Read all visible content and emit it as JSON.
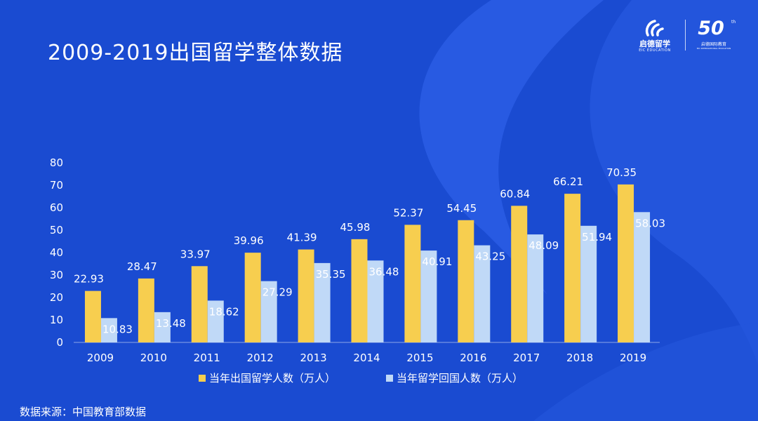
{
  "title": "2009-2019出国留学整体数据",
  "logo": {
    "brand_cn": "启德留学",
    "brand_en": "EIC EDUCATION",
    "anniversary_number": "50",
    "anniversary_suffix": "th",
    "anniversary_cn": "启德国际教育",
    "anniversary_en": "EIC INTERNATIONAL EDUCATION"
  },
  "source_text": "数据来源：中国教育部数据",
  "colors": {
    "background": "#1a4bd1",
    "series_outbound": "#f7ce4f",
    "series_returned": "#c0d9f7",
    "text": "#ffffff",
    "axis": "#8fa5e6"
  },
  "chart_data": {
    "type": "bar",
    "categories": [
      "2009",
      "2010",
      "2011",
      "2012",
      "2013",
      "2014",
      "2015",
      "2016",
      "2017",
      "2018",
      "2019"
    ],
    "series": [
      {
        "name": "当年出国留学人数（万人）",
        "values": [
          22.93,
          28.47,
          33.97,
          39.96,
          41.39,
          45.98,
          52.37,
          54.45,
          60.84,
          66.21,
          70.35
        ]
      },
      {
        "name": "当年留学回国人数（万人）",
        "values": [
          10.83,
          13.48,
          18.62,
          27.29,
          35.35,
          36.48,
          40.91,
          43.25,
          48.09,
          51.94,
          58.03
        ]
      }
    ],
    "yticks": [
      "0",
      "10",
      "20",
      "30",
      "40",
      "50",
      "60",
      "70",
      "80"
    ],
    "ylim": [
      0,
      80
    ],
    "data_labels": true,
    "legend_position": "bottom",
    "grid": false
  }
}
